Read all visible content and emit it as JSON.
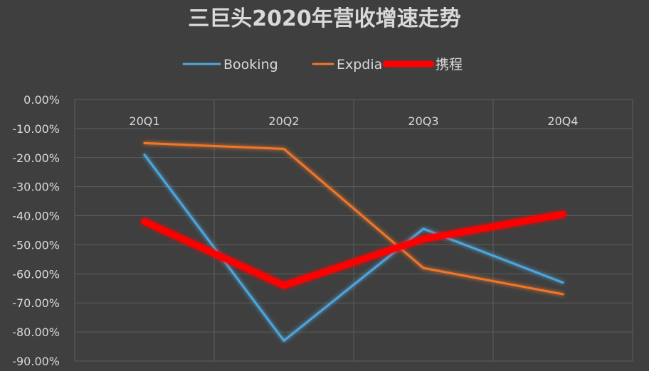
{
  "chart_data": {
    "type": "line",
    "title": "三巨头2020年营收增速走势",
    "categories": [
      "20Q1",
      "20Q2",
      "20Q3",
      "20Q4"
    ],
    "series": [
      {
        "name": "Booking",
        "values": [
          -19.0,
          -83.0,
          -44.5,
          -63.0
        ],
        "color": "#4ea6dc"
      },
      {
        "name": "Expdia",
        "values": [
          -15.0,
          -17.0,
          -58.0,
          -67.0
        ],
        "color": "#f0772b"
      },
      {
        "name": "携程",
        "values": [
          -42.0,
          -64.0,
          -48.0,
          -39.5
        ],
        "color": "#ff0000"
      }
    ],
    "ylim": [
      -90,
      0
    ],
    "yticks": [
      "0.00%",
      "-10.00%",
      "-20.00%",
      "-30.00%",
      "-40.00%",
      "-50.00%",
      "-60.00%",
      "-70.00%",
      "-80.00%",
      "-90.00%"
    ],
    "xlabel": "",
    "ylabel": "",
    "legend_position": "top",
    "grid": true,
    "x_axis_position": "top"
  }
}
